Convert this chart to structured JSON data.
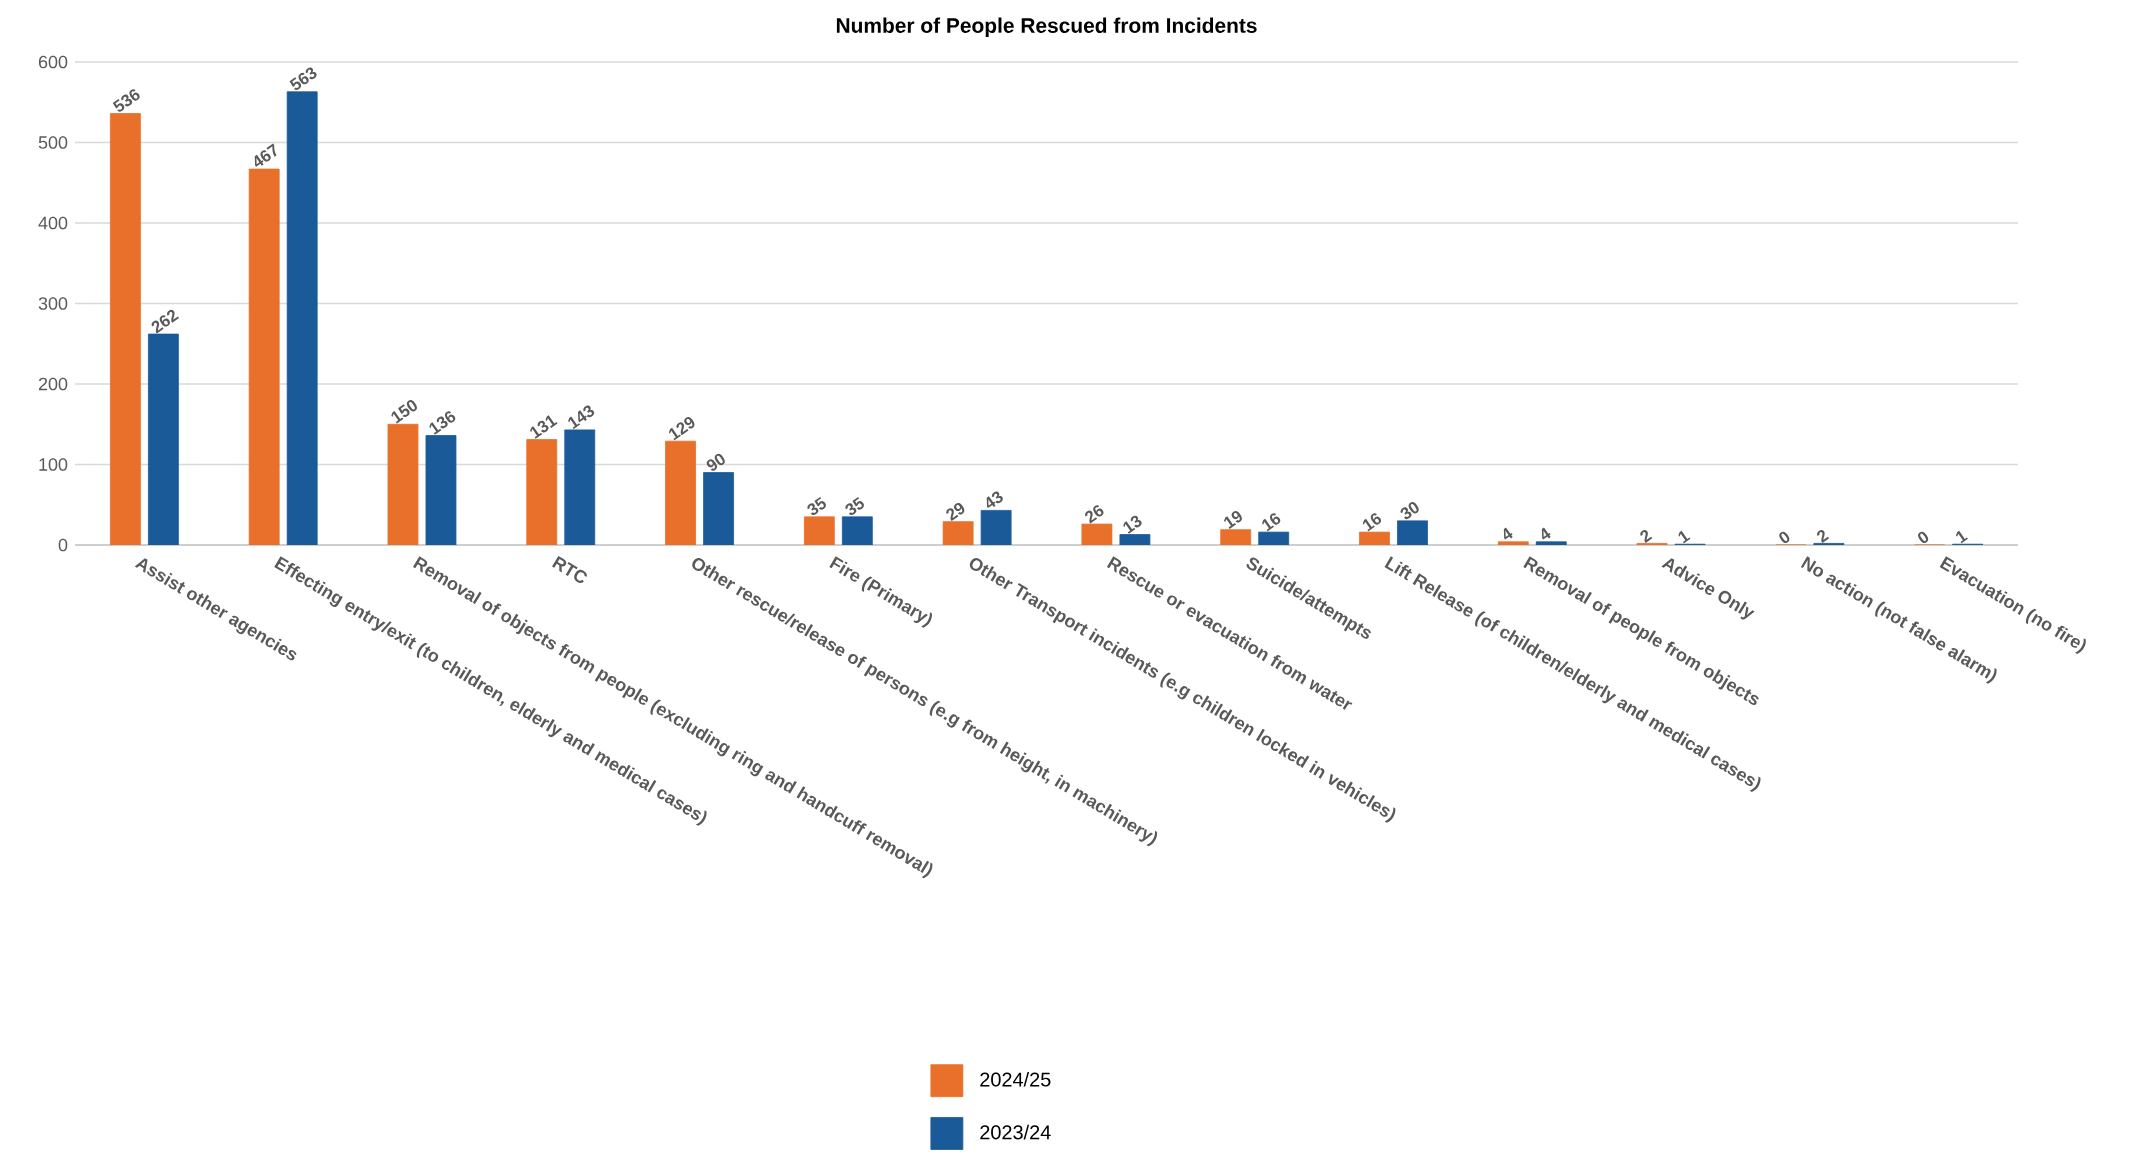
{
  "chart_data": {
    "type": "bar",
    "title": "Number of People Rescued from Incidents",
    "categories": [
      "Assist other agencies",
      "Effecting entry/exit (to children, elderly and medical cases)",
      "Removal of objects from people (excluding ring and handcuff removal)",
      "RTC",
      "Other rescue/release of persons (e.g from height, in machinery)",
      "Fire (Primary)",
      "Other Transport incidents (e.g children locked in vehicles)",
      "Rescue or evacuation from water",
      "Suicide/attempts",
      "Lift Release (of children/elderly and medical cases)",
      "Removal of people from objects",
      "Advice Only",
      "No action (not false alarm)",
      "Evacuation (no fire)"
    ],
    "series": [
      {
        "name": "2024/25",
        "color": "#e8702a",
        "values": [
          536,
          467,
          150,
          131,
          129,
          35,
          29,
          26,
          19,
          16,
          4,
          2,
          0,
          0
        ]
      },
      {
        "name": "2023/24",
        "color": "#1b5a98",
        "values": [
          262,
          563,
          136,
          143,
          90,
          35,
          43,
          13,
          16,
          30,
          4,
          1,
          2,
          1
        ]
      }
    ],
    "ylim": [
      0,
      600
    ],
    "yticks": [
      0,
      100,
      200,
      300,
      400,
      500,
      600
    ],
    "grid": "y",
    "legend": "bottom",
    "data_labels": true
  }
}
